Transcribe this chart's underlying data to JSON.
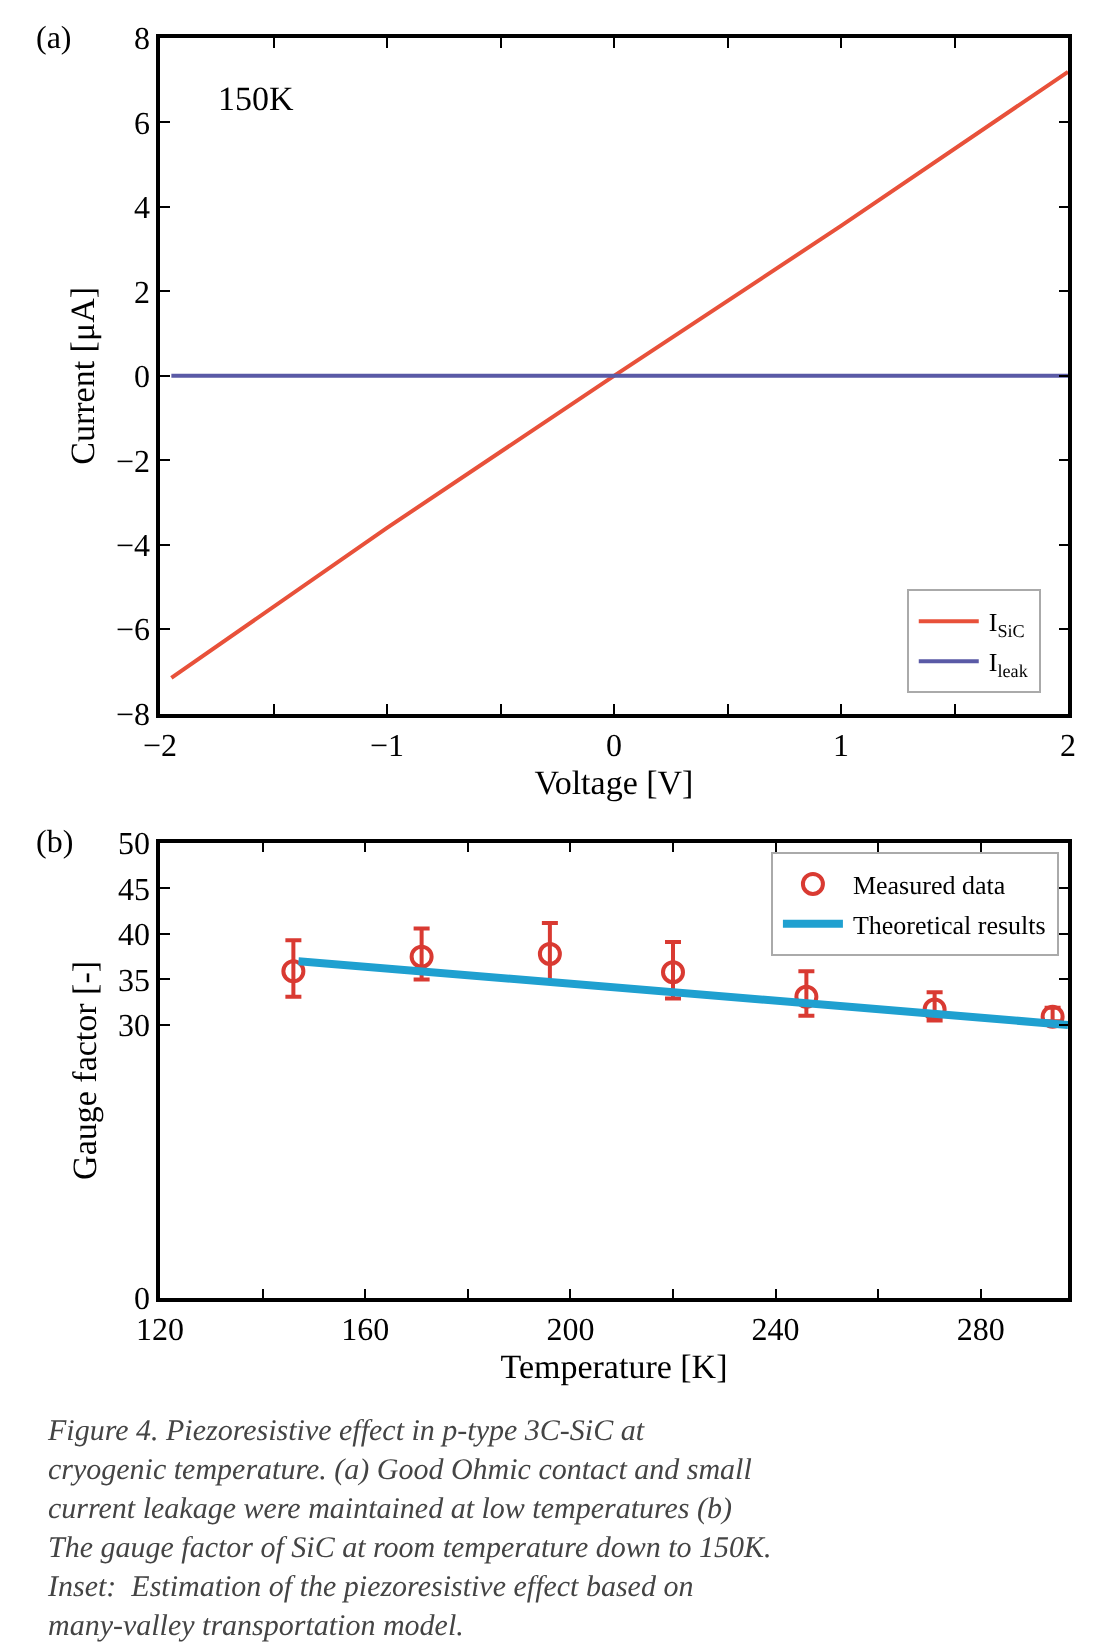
{
  "chart_data": [
    {
      "type": "line",
      "xlabel": "Voltage [V]",
      "ylabel": "Current [μA]",
      "annotations": [
        "(a)",
        "150K"
      ],
      "xlim": [
        -2,
        2
      ],
      "xticks": [
        -2,
        {
          "value": -1.5,
          "label": null
        },
        -1,
        {
          "value": -0.5,
          "label": null
        },
        0,
        {
          "value": 0.5,
          "label": null
        },
        1,
        {
          "value": 1.5,
          "label": null
        },
        2
      ],
      "ylim": [
        -8,
        8
      ],
      "yticks": [
        -8,
        -6,
        -4,
        -2,
        0,
        2,
        4,
        6,
        8
      ],
      "legend": "bottom right",
      "series": [
        {
          "name": "I$_{SiC}$",
          "color": "#e8513a",
          "x": [
            -1.95,
            -1,
            0,
            1,
            2
          ],
          "values": [
            -7.15,
            -3.6,
            0,
            3.55,
            7.2
          ]
        },
        {
          "name": "I$_{leak}$",
          "color": "#5a5aa6",
          "x": [
            -1.95,
            2
          ],
          "values": [
            0,
            0
          ]
        }
      ]
    },
    {
      "type": "scatter",
      "xlabel": "Temperature [K]",
      "ylabel": "Gauge factor [-]",
      "annotations": [
        "(b)",
        "Figure 4. Piezoresistive effect in p-type 3C-SiC at cryogenic temperature. (a) Good Ohmic contact and small current leakage were maintained at low temperatures (b) The gauge factor of SiC at room temperature down to 150K. Inset:  Estimation of the piezoresistive effect based on many-valley transportation model."
      ],
      "xlim": [
        120,
        297
      ],
      "xticks": [
        120,
        {
          "value": 140,
          "label": null
        },
        160,
        {
          "value": 180,
          "label": null
        },
        200,
        {
          "value": 220,
          "label": null
        },
        240,
        {
          "value": 260,
          "label": null
        },
        280
      ],
      "ylim": [
        0,
        50
      ],
      "yticks": [
        0,
        30,
        35,
        40,
        45,
        50
      ],
      "legend": "top right",
      "series": [
        {
          "name": "Measured data",
          "type": "scatter",
          "marker": "circle",
          "color": "#d93a32",
          "x": [
            146,
            171,
            196,
            220,
            246,
            271,
            294
          ],
          "values": [
            35.9,
            37.5,
            37.8,
            35.8,
            33.1,
            31.7,
            30.9
          ],
          "errors": [
            [
              33.1,
              39.3
            ],
            [
              35.0,
              40.6
            ],
            [
              34.8,
              41.2
            ],
            [
              32.9,
              39.1
            ],
            [
              31.0,
              35.9
            ],
            [
              30.5,
              33.6
            ],
            [
              30.4,
              31.9
            ]
          ]
        },
        {
          "name": "Theoretical results",
          "type": "line",
          "color": "#1fa0d0",
          "x": [
            147,
            297
          ],
          "values": [
            37.0,
            30.0
          ]
        }
      ]
    }
  ]
}
